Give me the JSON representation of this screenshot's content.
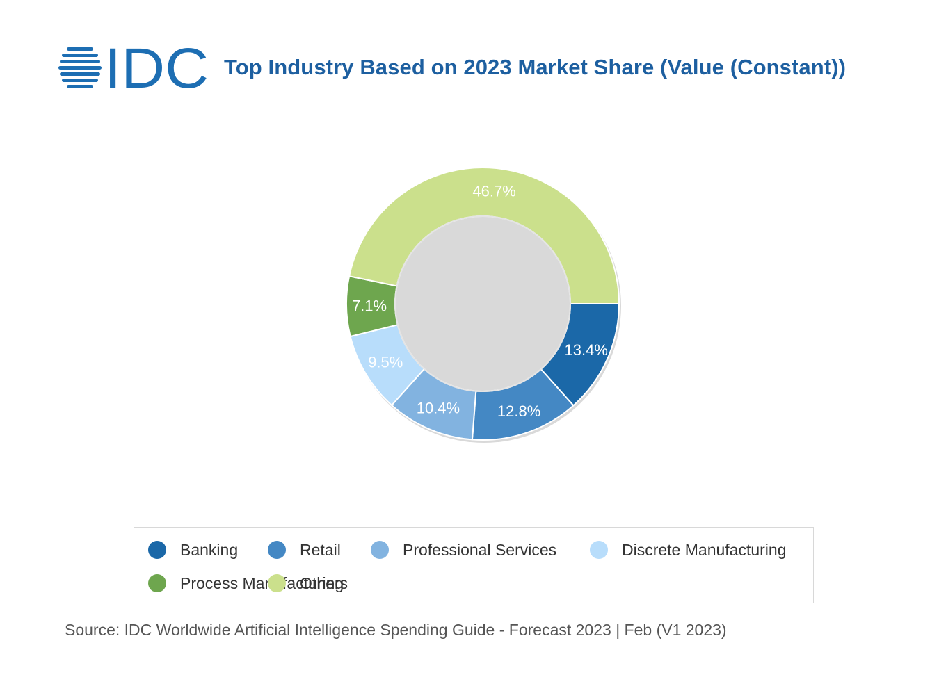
{
  "header": {
    "brand": "IDC",
    "brand_color": "#1d6eb3",
    "title": "Top Industry Based on 2023 Market Share (Value (Constant))"
  },
  "chart_data": {
    "type": "pie",
    "variant": "donut",
    "title": "Top Industry Based on 2023 Market Share (Value (Constant))",
    "unit": "%",
    "categories": [
      "Banking",
      "Retail",
      "Professional Services",
      "Discrete Manufacturing",
      "Process Manufacturing",
      "Others"
    ],
    "values": [
      13.4,
      12.8,
      10.4,
      9.5,
      7.1,
      46.7
    ],
    "labels": [
      "13.4%",
      "12.8%",
      "10.4%",
      "9.5%",
      "7.1%",
      "46.7%"
    ],
    "colors": [
      "#1b68a8",
      "#4488c4",
      "#82b3e0",
      "#b8ddfb",
      "#6ea64e",
      "#cbe08c"
    ],
    "legend_placement": "bottom",
    "legend_columns": 4
  },
  "source": "Source: IDC Worldwide Artificial Intelligence Spending Guide - Forecast 2023 | Feb (V1 2023)"
}
